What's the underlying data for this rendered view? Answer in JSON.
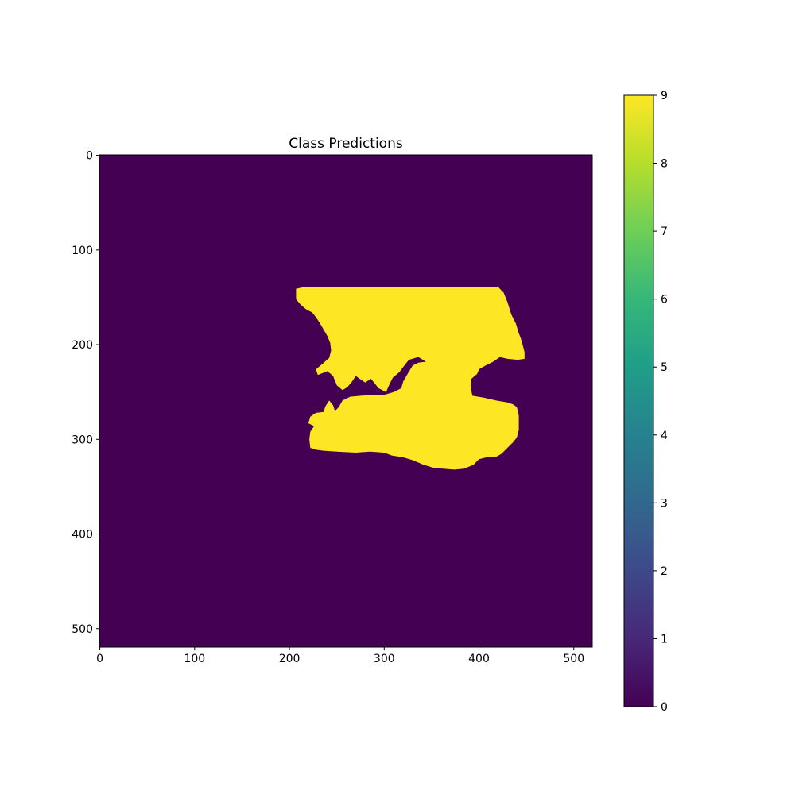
{
  "chart_data": {
    "type": "heatmap",
    "title": "Class Predictions",
    "xlabel": "",
    "ylabel": "",
    "image_extent": {
      "x": [
        -0.5,
        519.5
      ],
      "y": [
        519.5,
        -0.5
      ]
    },
    "x_ticks": [
      0,
      100,
      200,
      300,
      400,
      500
    ],
    "x_tick_labels": [
      "0",
      "100",
      "200",
      "300",
      "400",
      "500"
    ],
    "y_ticks": [
      0,
      100,
      200,
      300,
      400,
      500
    ],
    "y_tick_labels": [
      "0",
      "100",
      "200",
      "300",
      "400",
      "500"
    ],
    "y_axis_inverted": true,
    "grid": false,
    "background_class": 0,
    "regions": [
      {
        "name": "predicted-region-class-9",
        "class": 9,
        "color": "#fde725",
        "polygon": [
          [
            207,
            141
          ],
          [
            216,
            139
          ],
          [
            250,
            139
          ],
          [
            342,
            139
          ],
          [
            420,
            139
          ],
          [
            426,
            145
          ],
          [
            430,
            155
          ],
          [
            434,
            168
          ],
          [
            439,
            178
          ],
          [
            442,
            188
          ],
          [
            444,
            193
          ],
          [
            446,
            200
          ],
          [
            448,
            208
          ],
          [
            448,
            215
          ],
          [
            441,
            216
          ],
          [
            430,
            215
          ],
          [
            422,
            213
          ],
          [
            415,
            218
          ],
          [
            407,
            222
          ],
          [
            400,
            226
          ],
          [
            398,
            231
          ],
          [
            392,
            236
          ],
          [
            391,
            244
          ],
          [
            393,
            254
          ],
          [
            405,
            256
          ],
          [
            418,
            259
          ],
          [
            430,
            261
          ],
          [
            436,
            263
          ],
          [
            440,
            266
          ],
          [
            442,
            275
          ],
          [
            442,
            290
          ],
          [
            440,
            298
          ],
          [
            436,
            303
          ],
          [
            430,
            309
          ],
          [
            424,
            315
          ],
          [
            419,
            318
          ],
          [
            408,
            319
          ],
          [
            400,
            321
          ],
          [
            394,
            327
          ],
          [
            384,
            331
          ],
          [
            374,
            332
          ],
          [
            362,
            331
          ],
          [
            352,
            330
          ],
          [
            342,
            327
          ],
          [
            330,
            322
          ],
          [
            320,
            319
          ],
          [
            308,
            317
          ],
          [
            300,
            314
          ],
          [
            285,
            313
          ],
          [
            270,
            314
          ],
          [
            250,
            313
          ],
          [
            236,
            312
          ],
          [
            228,
            311
          ],
          [
            222,
            309
          ],
          [
            221,
            300
          ],
          [
            222,
            292
          ],
          [
            226,
            286
          ],
          [
            220,
            283
          ],
          [
            222,
            276
          ],
          [
            228,
            272
          ],
          [
            236,
            271
          ],
          [
            238,
            265
          ],
          [
            242,
            259
          ],
          [
            246,
            264
          ],
          [
            248,
            270
          ],
          [
            252,
            266
          ],
          [
            256,
            259
          ],
          [
            264,
            255
          ],
          [
            275,
            254
          ],
          [
            288,
            253
          ],
          [
            300,
            253
          ],
          [
            310,
            250
          ],
          [
            318,
            246
          ],
          [
            320,
            239
          ],
          [
            324,
            232
          ],
          [
            330,
            222
          ],
          [
            336,
            219
          ],
          [
            344,
            218
          ],
          [
            336,
            213
          ],
          [
            326,
            216
          ],
          [
            322,
            221
          ],
          [
            316,
            229
          ],
          [
            309,
            235
          ],
          [
            305,
            243
          ],
          [
            302,
            250
          ],
          [
            294,
            246
          ],
          [
            290,
            241
          ],
          [
            286,
            236
          ],
          [
            280,
            240
          ],
          [
            274,
            236
          ],
          [
            270,
            233
          ],
          [
            266,
            239
          ],
          [
            261,
            245
          ],
          [
            256,
            248
          ],
          [
            250,
            243
          ],
          [
            246,
            233
          ],
          [
            240,
            228
          ],
          [
            230,
            232
          ],
          [
            228,
            226
          ],
          [
            234,
            221
          ],
          [
            242,
            214
          ],
          [
            244,
            206
          ],
          [
            243,
            198
          ],
          [
            240,
            191
          ],
          [
            236,
            184
          ],
          [
            232,
            177
          ],
          [
            228,
            171
          ],
          [
            224,
            166
          ],
          [
            218,
            163
          ],
          [
            212,
            158
          ],
          [
            207,
            152
          ]
        ]
      }
    ],
    "colorbar": {
      "cmap": "viridis",
      "vmin": 0,
      "vmax": 9,
      "ticks": [
        0,
        1,
        2,
        3,
        4,
        5,
        6,
        7,
        8,
        9
      ],
      "tick_labels": [
        "0",
        "1",
        "2",
        "3",
        "4",
        "5",
        "6",
        "7",
        "8",
        "9"
      ],
      "color_stops": [
        "#440154",
        "#482878",
        "#3e4989",
        "#31688e",
        "#26828e",
        "#1f9e89",
        "#35b779",
        "#6ece58",
        "#b5de2b",
        "#fde725"
      ]
    },
    "colors": {
      "background": "#440154",
      "foreground": "#fde725"
    }
  }
}
